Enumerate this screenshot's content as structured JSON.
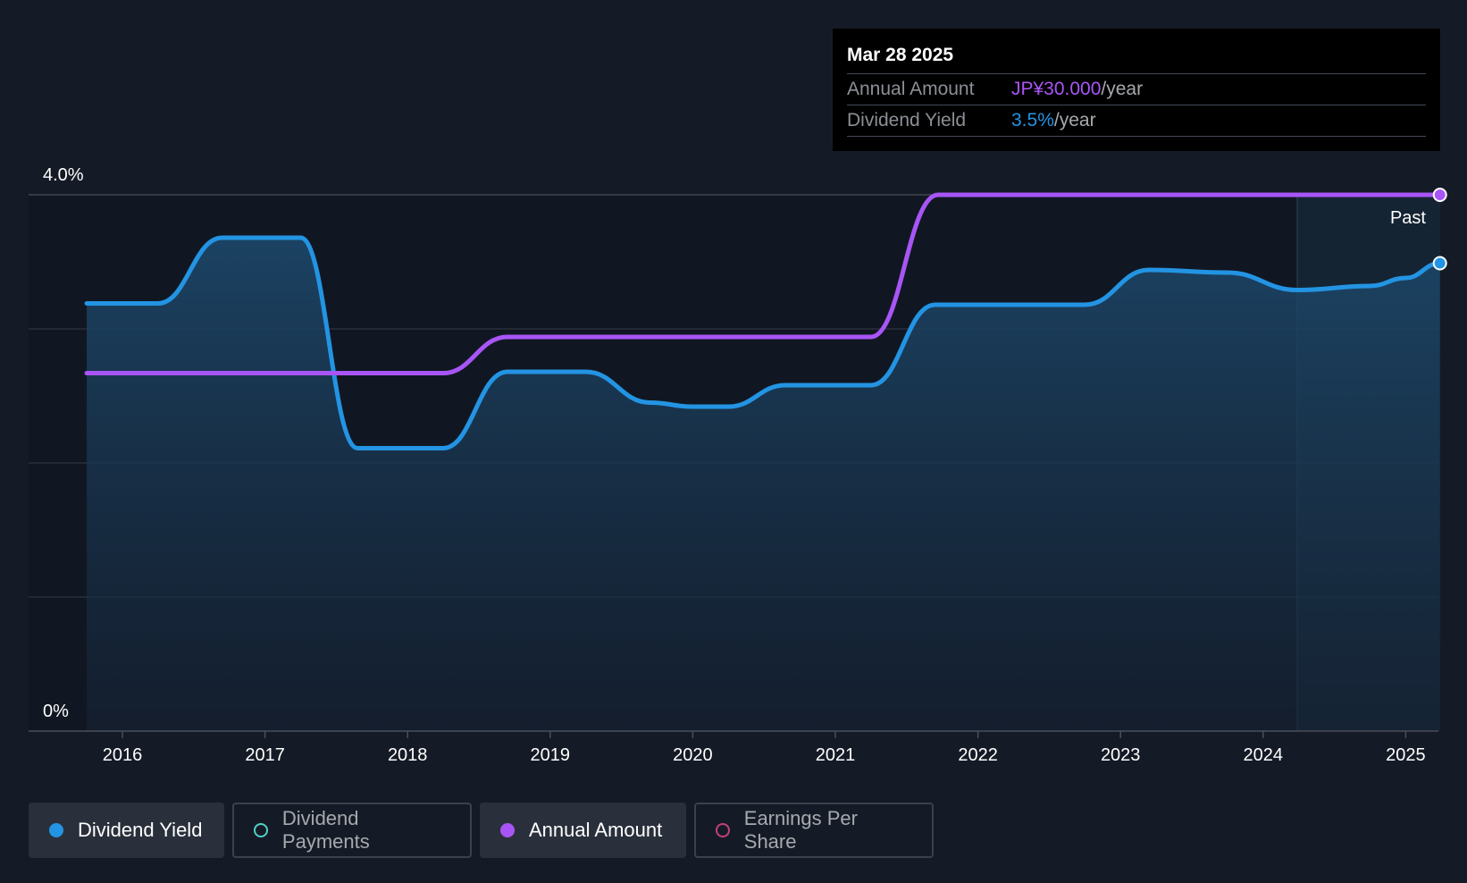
{
  "tooltip": {
    "date": "Mar 28 2025",
    "rows": [
      {
        "label": "Annual Amount",
        "value": "JP¥30.000",
        "unit": "/year"
      },
      {
        "label": "Dividend Yield",
        "value": "3.5%",
        "unit": "/year"
      }
    ]
  },
  "past_label": "Past",
  "legend": [
    {
      "label": "Dividend Yield",
      "active": true,
      "color": "#2394e3"
    },
    {
      "label": "Dividend Payments",
      "active": false,
      "color": "#4fd1c5"
    },
    {
      "label": "Annual Amount",
      "active": true,
      "color": "#a855f7"
    },
    {
      "label": "Earnings Per Share",
      "active": false,
      "color": "#c2417a"
    }
  ],
  "chart_data": {
    "type": "line",
    "x_ticks": [
      "2016",
      "2017",
      "2018",
      "2019",
      "2020",
      "2021",
      "2022",
      "2023",
      "2024",
      "2025"
    ],
    "y_tick_labels": [
      "4.0%",
      "0%"
    ],
    "ylim": [
      0,
      4.0
    ],
    "xlim": [
      2015.67,
      2025.24
    ],
    "past_region_start": 2024.24,
    "series": [
      {
        "name": "Dividend Yield",
        "color": "#2394e3",
        "unit": "%",
        "fill": true,
        "points": [
          [
            2015.75,
            3.19
          ],
          [
            2016.25,
            3.19
          ],
          [
            2016.7,
            3.68
          ],
          [
            2017.25,
            3.68
          ],
          [
            2017.65,
            2.11
          ],
          [
            2018.25,
            2.11
          ],
          [
            2018.7,
            2.68
          ],
          [
            2019.25,
            2.68
          ],
          [
            2019.7,
            2.45
          ],
          [
            2020.0,
            2.42
          ],
          [
            2020.25,
            2.42
          ],
          [
            2020.65,
            2.58
          ],
          [
            2021.25,
            2.58
          ],
          [
            2021.7,
            3.18
          ],
          [
            2022.75,
            3.18
          ],
          [
            2023.2,
            3.44
          ],
          [
            2023.75,
            3.42
          ],
          [
            2024.24,
            3.29
          ],
          [
            2024.75,
            3.32
          ],
          [
            2025.0,
            3.38
          ],
          [
            2025.24,
            3.49
          ]
        ]
      },
      {
        "name": "Annual Amount",
        "color": "#a855f7",
        "unit": "JP¥",
        "fill": false,
        "points": [
          [
            2015.75,
            2.67
          ],
          [
            2018.25,
            2.67
          ],
          [
            2018.7,
            2.94
          ],
          [
            2021.25,
            2.94
          ],
          [
            2021.72,
            4.0
          ],
          [
            2025.24,
            4.0
          ]
        ]
      }
    ]
  }
}
